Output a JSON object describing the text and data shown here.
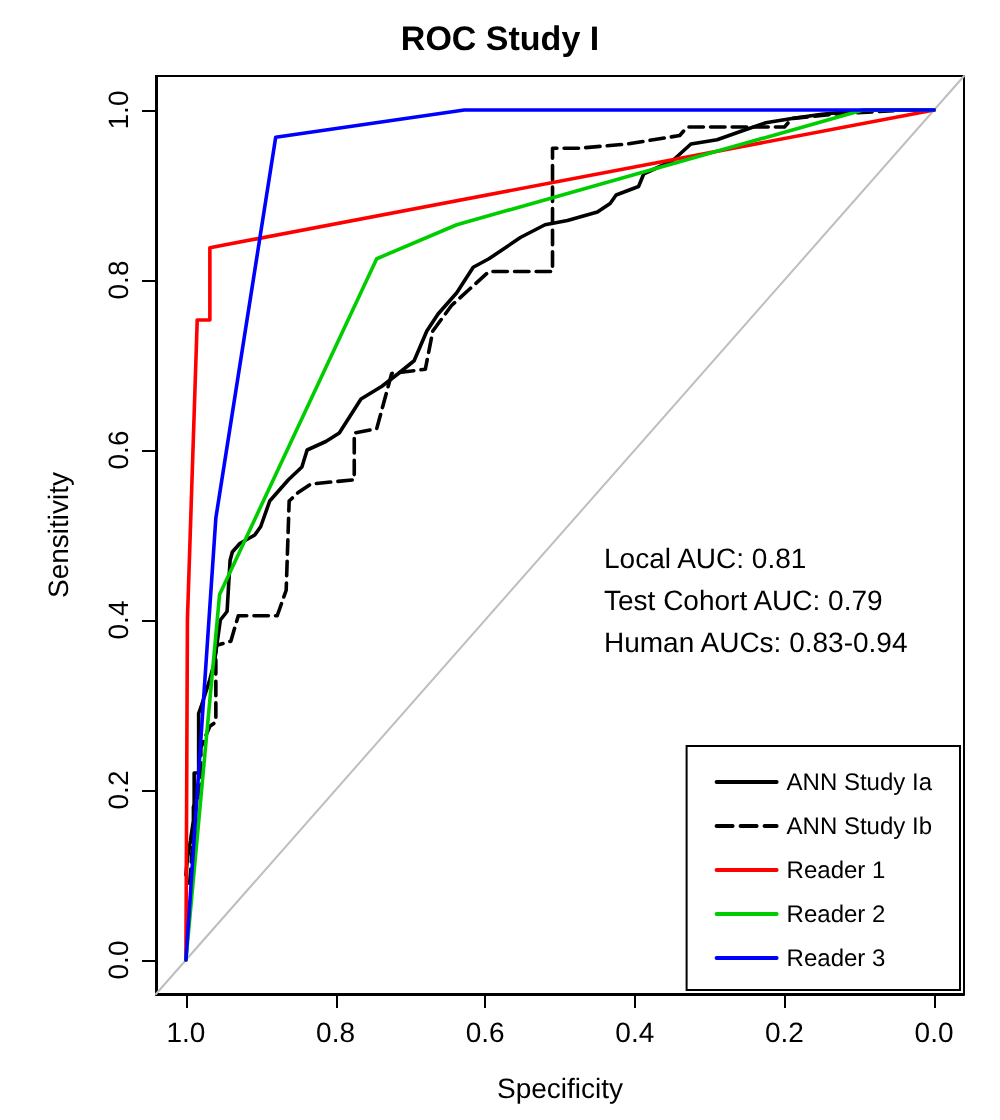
{
  "chart_data": {
    "type": "line",
    "title": "ROC Study I",
    "xlabel": "Specificity",
    "ylabel": "Sensitivity",
    "xlim": [
      1.04,
      -0.04
    ],
    "ylim": [
      -0.04,
      1.04
    ],
    "xticks": [
      {
        "value": 1,
        "label": "1.0"
      },
      0.8,
      0.6,
      0.4,
      0.2,
      {
        "value": 0,
        "label": "0.0"
      }
    ],
    "yticks": [
      {
        "value": 0,
        "label": "0.0"
      },
      0.2,
      0.4,
      0.6,
      0.8,
      {
        "value": 1,
        "label": "1.0"
      }
    ],
    "grid": false,
    "legend": "bottom right",
    "marker": "none",
    "line_style": "solid",
    "annotations": [
      "Local AUC: 0.81",
      "Test Cohort AUC: 0.79",
      "Human AUCs: 0.83-0.94"
    ],
    "series": [
      {
        "color": "#bebebe",
        "x": [
          1.04,
          -0.04
        ],
        "values": [
          -0.04,
          1.04
        ]
      },
      {
        "name": "ANN Study Ia",
        "color": "#000000",
        "x": [
          1.0,
          0.998,
          0.994,
          0.989,
          0.989,
          0.983,
          0.983,
          0.979,
          0.968,
          0.962,
          0.954,
          0.945,
          0.941,
          0.938,
          0.928,
          0.908,
          0.9,
          0.888,
          0.863,
          0.845,
          0.838,
          0.813,
          0.795,
          0.766,
          0.738,
          0.716,
          0.695,
          0.678,
          0.663,
          0.638,
          0.616,
          0.595,
          0.578,
          0.553,
          0.52,
          0.49,
          0.45,
          0.433,
          0.425,
          0.395,
          0.388,
          0.35,
          0.325,
          0.29,
          0.258,
          0.225,
          0.19,
          0.15,
          0.09,
          0.0
        ],
        "values": [
          0.1,
          0.12,
          0.14,
          0.17,
          0.22,
          0.22,
          0.29,
          0.3,
          0.33,
          0.35,
          0.4,
          0.41,
          0.47,
          0.48,
          0.49,
          0.5,
          0.51,
          0.54,
          0.565,
          0.58,
          0.6,
          0.61,
          0.62,
          0.66,
          0.675,
          0.69,
          0.705,
          0.74,
          0.76,
          0.785,
          0.815,
          0.825,
          0.835,
          0.85,
          0.865,
          0.87,
          0.88,
          0.89,
          0.9,
          0.91,
          0.925,
          0.94,
          0.96,
          0.965,
          0.975,
          0.985,
          0.99,
          0.995,
          1.0,
          1.0
        ]
      },
      {
        "name": "ANN Study Ib",
        "color": "#000000",
        "line_style": "dashed",
        "x": [
          0.995,
          0.99,
          0.99,
          0.98,
          0.98,
          0.968,
          0.96,
          0.96,
          0.94,
          0.93,
          0.878,
          0.866,
          0.862,
          0.85,
          0.833,
          0.775,
          0.775,
          0.745,
          0.725,
          0.68,
          0.67,
          0.645,
          0.62,
          0.595,
          0.51,
          0.51,
          0.475,
          0.41,
          0.34,
          0.33,
          0.2,
          0.19,
          0.135,
          0.04,
          0.0
        ],
        "values": [
          0.09,
          0.15,
          0.18,
          0.2,
          0.25,
          0.275,
          0.28,
          0.37,
          0.375,
          0.405,
          0.405,
          0.435,
          0.54,
          0.55,
          0.56,
          0.565,
          0.62,
          0.625,
          0.69,
          0.695,
          0.74,
          0.77,
          0.79,
          0.81,
          0.81,
          0.955,
          0.955,
          0.96,
          0.97,
          0.98,
          0.98,
          0.99,
          0.995,
          1.0,
          1.0
        ]
      },
      {
        "name": "Reader 1",
        "color": "#ff0000",
        "x": [
          1.0,
          0.998,
          0.985,
          0.985,
          0.968,
          0.968,
          0.0
        ],
        "values": [
          0.0,
          0.4,
          0.75,
          0.753,
          0.753,
          0.838,
          1.0
        ]
      },
      {
        "name": "Reader 2",
        "color": "#00cd00",
        "x": [
          1.0,
          0.955,
          0.745,
          0.638,
          0.095,
          0.0
        ],
        "values": [
          0.0,
          0.43,
          0.825,
          0.865,
          1.0,
          1.0
        ]
      },
      {
        "name": "Reader 3",
        "color": "#0000ff",
        "x": [
          1.0,
          0.96,
          0.88,
          0.628,
          0.0
        ],
        "values": [
          0.0,
          0.52,
          0.968,
          1.0,
          1.0
        ]
      }
    ]
  }
}
